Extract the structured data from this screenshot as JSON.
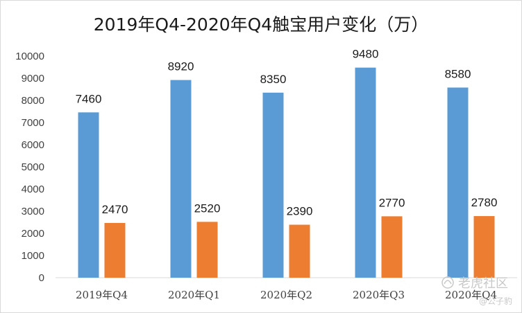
{
  "chart_data": {
    "type": "bar",
    "title": "2019年Q4-2020年Q4触宝用户变化（万）",
    "xlabel": "",
    "ylabel": "",
    "categories": [
      "2019年Q4",
      "2020年Q1",
      "2020年Q2",
      "2020年Q3",
      "2020年Q4"
    ],
    "series": [
      {
        "values": [
          7460,
          8920,
          8350,
          9480,
          8580
        ],
        "color": "#5b9bd5"
      },
      {
        "values": [
          2470,
          2520,
          2390,
          2770,
          2780
        ],
        "color": "#ed7d31"
      }
    ],
    "ylim": [
      0,
      10000
    ],
    "yticks": [
      "0",
      "1000",
      "2000",
      "3000",
      "4000",
      "5000",
      "6000",
      "7000",
      "8000",
      "9000",
      "10000"
    ],
    "grid": false,
    "legend": "none",
    "data_labels": true
  },
  "watermark": {
    "line1": "老虎社区",
    "line2": "@公子豹"
  }
}
